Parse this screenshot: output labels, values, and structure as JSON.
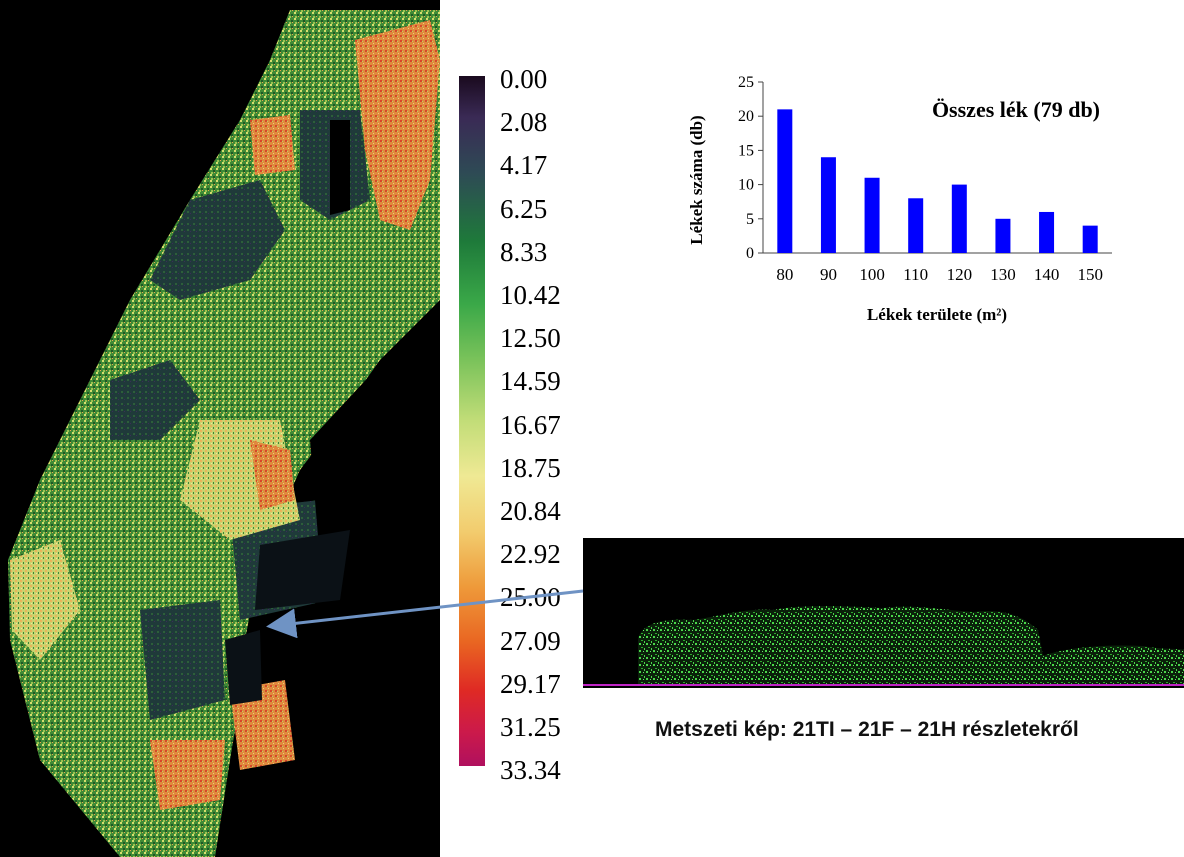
{
  "legend": {
    "values": [
      "0.00",
      "2.08",
      "4.17",
      "6.25",
      "8.33",
      "10.42",
      "12.50",
      "14.59",
      "16.67",
      "18.75",
      "20.84",
      "22.92",
      "25.00",
      "27.09",
      "29.17",
      "31.25",
      "33.34"
    ]
  },
  "chart_data": {
    "type": "bar",
    "title": "Összes lék (79 db)",
    "xlabel": "Lékek területe (m²)",
    "ylabel": "Lékek száma (db)",
    "categories": [
      "80",
      "90",
      "100",
      "110",
      "120",
      "130",
      "140",
      "150"
    ],
    "values": [
      21,
      14,
      11,
      8,
      10,
      5,
      6,
      4
    ],
    "ylim": [
      0,
      25
    ],
    "yticks": [
      0,
      5,
      10,
      15,
      20,
      25
    ],
    "color": "#0000ff",
    "grid": false,
    "legend": false
  },
  "caption": "Metszeti kép: 21TI – 21F – 21H részletekről",
  "colors": {
    "arrow": "#6f93c4",
    "section_vegetation": "#49d64a",
    "section_ground": "#c024c6"
  }
}
